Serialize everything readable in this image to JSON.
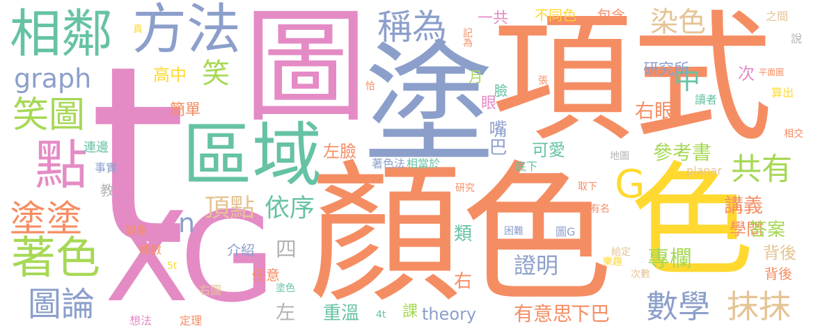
{
  "colors": {
    "pink": "#e48bc5",
    "orange": "#f58d63",
    "blue": "#8c9fcb",
    "green": "#a6d855",
    "teal": "#66c2a5",
    "yellow": "#ffd92f",
    "tan": "#e5c494",
    "gray": "#b3b3b3"
  },
  "words": [
    "t",
    "XG",
    "塗",
    "圖",
    "項式",
    "顏色",
    "色",
    "區域",
    "相鄰",
    "方法",
    "稱為",
    "graph",
    "笑圖",
    "點",
    "塗塗",
    "著色",
    "圖論",
    "G",
    "n",
    "笑",
    "高中",
    "簡單",
    "連邊",
    "事實",
    "教",
    "對象",
    "總數",
    "介紹",
    "任意",
    "右圖",
    "想法",
    "定理",
    "塗色",
    "5t",
    "四",
    "左",
    "重溫",
    "4t",
    "課",
    "theory",
    "有意思",
    "下巴",
    "數學",
    "抹抹",
    "證明",
    "類",
    "右",
    "頂點",
    "依序",
    "左臉",
    "可愛",
    "嘴巴",
    "參考書",
    "共有",
    "中",
    "次",
    "右眼",
    "染色",
    "一共",
    "不同色",
    "包含",
    "之間",
    "說",
    "真",
    "記為",
    "月",
    "臉",
    "眼",
    "研究所",
    "平面圖",
    "算出",
    "讀者",
    "相交",
    "地圖",
    "planar",
    "底下",
    "取下",
    "有名",
    "研究",
    "著色法",
    "相當於",
    "恰",
    "張",
    "困難",
    "圖G",
    "講義",
    "學問",
    "答案",
    "背後",
    "專欄",
    "樂趣",
    "次數",
    "給定",
    "討論"
  ]
}
